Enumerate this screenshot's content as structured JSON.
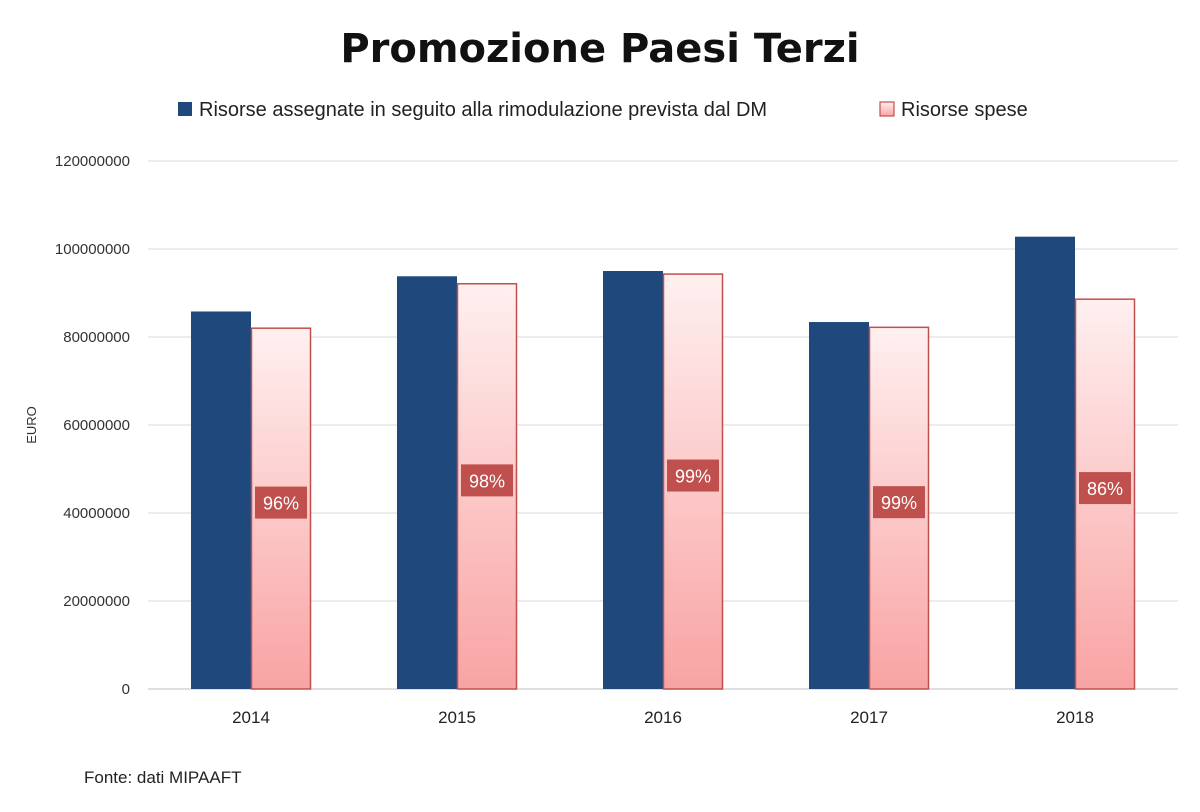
{
  "chart_data": {
    "type": "bar",
    "title": "Promozione Paesi Terzi",
    "ylabel": "EURO",
    "xlabel": "",
    "ylim": [
      0,
      120000000
    ],
    "yticks": [
      0,
      20000000,
      40000000,
      60000000,
      80000000,
      100000000,
      120000000
    ],
    "grid": true,
    "legend_position": "top",
    "categories": [
      "2014",
      "2015",
      "2016",
      "2017",
      "2018"
    ],
    "series": [
      {
        "name": "Risorse assegnate in seguito alla rimodulazione prevista dal DM",
        "color": "#1f497d",
        "values": [
          85800000,
          93800000,
          95000000,
          83400000,
          102800000
        ]
      },
      {
        "name": "Risorse spese",
        "color": "#f7b8b8",
        "border": "#c0504d",
        "values": [
          82000000,
          92100000,
          94300000,
          82200000,
          88600000
        ]
      }
    ],
    "data_labels": [
      "96%",
      "98%",
      "99%",
      "99%",
      "86%"
    ],
    "data_label_color": "#c0504d",
    "source": "Fonte: dati MIPAAFT"
  }
}
